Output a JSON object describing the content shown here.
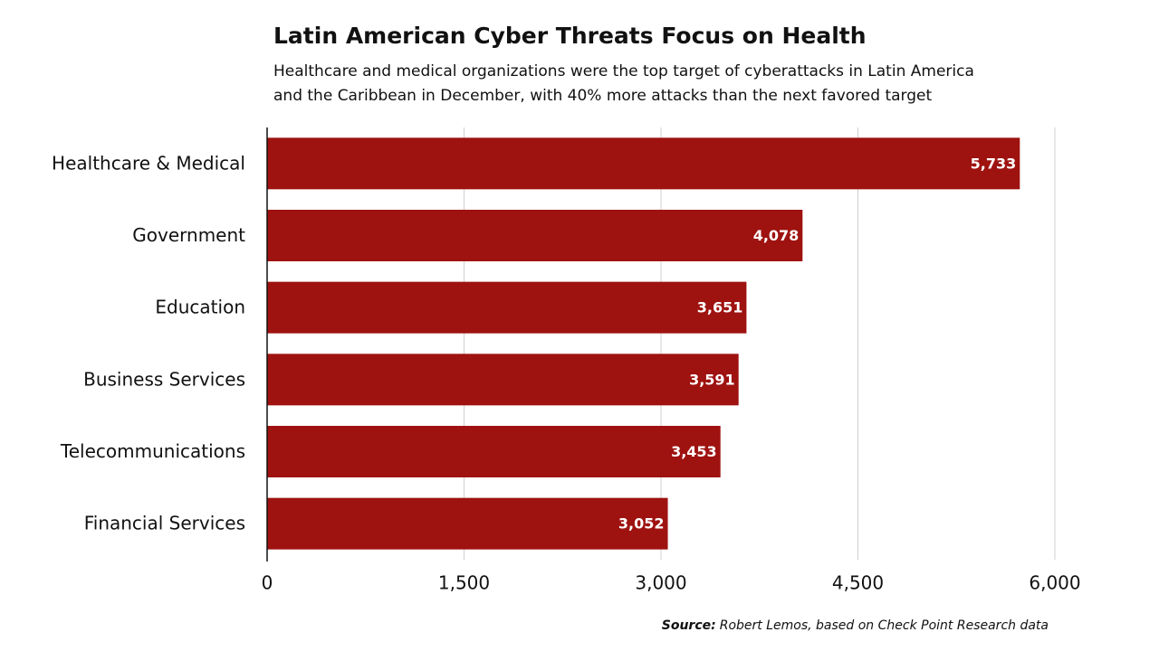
{
  "chart_data": {
    "type": "bar",
    "orientation": "horizontal",
    "title": "Latin American Cyber Threats Focus on Health",
    "subtitle": [
      "Healthcare and medical organizations were the top target of cyberattacks in Latin America",
      "and the Caribbean in December, with 40% more attacks than the next favored target"
    ],
    "categories": [
      "Healthcare & Medical",
      "Government",
      "Education",
      "Business Services",
      "Telecommunications",
      "Financial Services"
    ],
    "values": [
      5733,
      4078,
      3651,
      3591,
      3453,
      3052
    ],
    "value_labels": [
      "5,733",
      "4,078",
      "3,651",
      "3,591",
      "3,453",
      "3,052"
    ],
    "color": "#9e1210",
    "xlim": [
      0,
      6000
    ],
    "xticks": [
      0,
      {
        "value": 1500,
        "label": "1,500"
      },
      {
        "value": 3000,
        "label": "3,000"
      },
      {
        "value": 4500,
        "label": "4,500"
      },
      {
        "value": 6000,
        "label": "6,000"
      }
    ],
    "grid": true,
    "source_label": "Source:",
    "source": "Robert Lemos, based on Check Point Research data"
  }
}
